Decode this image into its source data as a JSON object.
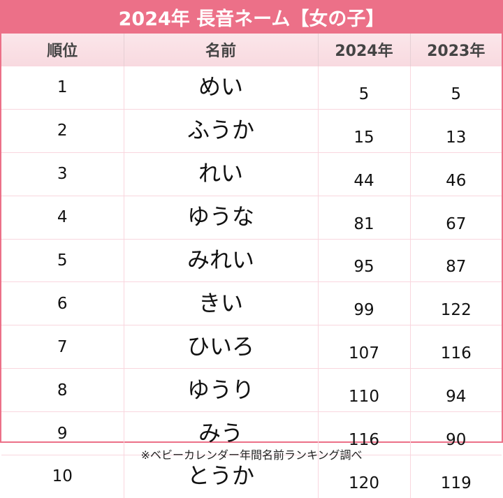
{
  "title": "2024年 長音ネーム【女の子】",
  "columns": [
    "順位",
    "名前",
    "2024年",
    "2023年"
  ],
  "rows": [
    {
      "rank": "1",
      "name": "めい",
      "y2024": "5",
      "y2023": "5"
    },
    {
      "rank": "2",
      "name": "ふうか",
      "y2024": "15",
      "y2023": "13"
    },
    {
      "rank": "3",
      "name": "れい",
      "y2024": "44",
      "y2023": "46"
    },
    {
      "rank": "4",
      "name": "ゆうな",
      "y2024": "81",
      "y2023": "67"
    },
    {
      "rank": "5",
      "name": "みれい",
      "y2024": "95",
      "y2023": "87"
    },
    {
      "rank": "6",
      "name": "きい",
      "y2024": "99",
      "y2023": "122"
    },
    {
      "rank": "7",
      "name": "ひいろ",
      "y2024": "107",
      "y2023": "116"
    },
    {
      "rank": "8",
      "name": "ゆうり",
      "y2024": "110",
      "y2023": "94"
    },
    {
      "rank": "9",
      "name": "みう",
      "y2024": "116",
      "y2023": "90"
    },
    {
      "rank": "10",
      "name": "とうか",
      "y2024": "120",
      "y2023": "119"
    }
  ],
  "footer": "※ベビーカレンダー年間名前ランキング調べ",
  "colors": {
    "accent": "#ec7088",
    "header_bg": "#f9dfe4",
    "grid": "#f9d6de"
  }
}
